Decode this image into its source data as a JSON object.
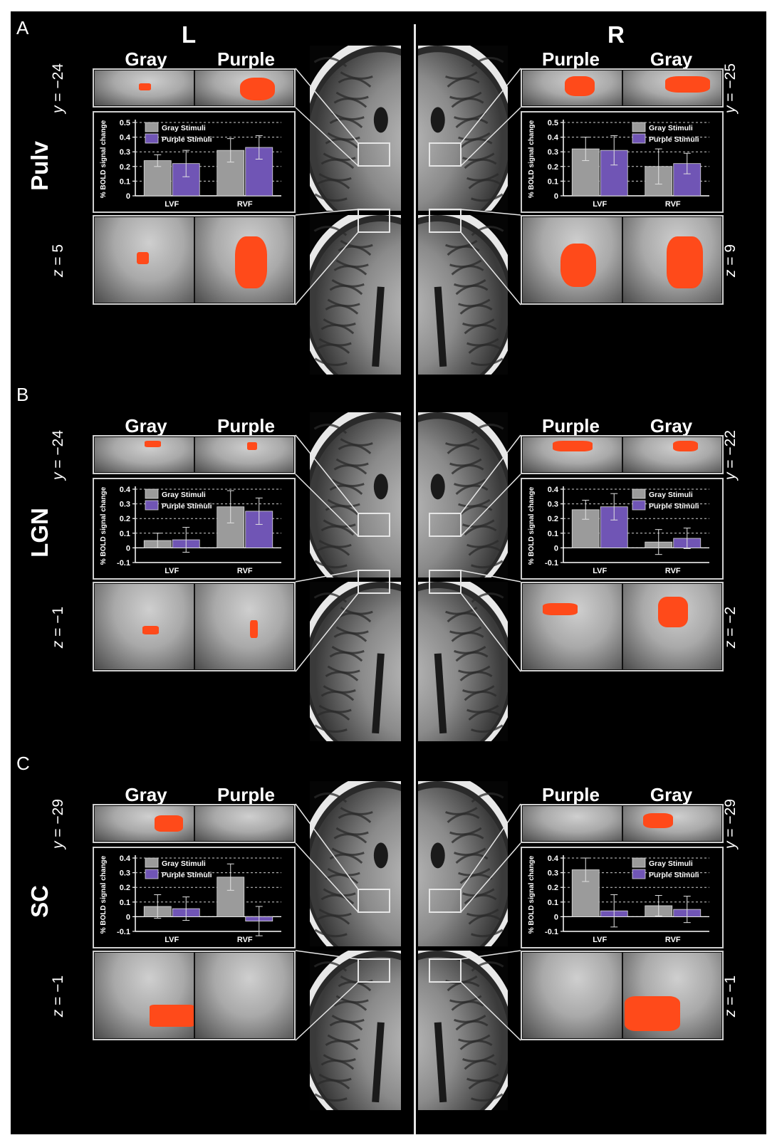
{
  "figure": {
    "hemispheres": {
      "left": "L",
      "right": "R"
    },
    "rows": [
      {
        "letter": "A",
        "region": "Pulv",
        "left": {
          "headers": [
            "Gray",
            "Purple"
          ],
          "y_coord": {
            "axis": "y",
            "value": " = −24"
          },
          "z_coord": {
            "axis": "z",
            "value": " = 5"
          }
        },
        "right": {
          "headers": [
            "Purple",
            "Gray"
          ],
          "y_coord": {
            "axis": "y",
            "value": " = −25"
          },
          "z_coord": {
            "axis": "z",
            "value": " = 9"
          }
        }
      },
      {
        "letter": "B",
        "region": "LGN",
        "left": {
          "headers": [
            "Gray",
            "Purple"
          ],
          "y_coord": {
            "axis": "y",
            "value": " = −24"
          },
          "z_coord": {
            "axis": "z",
            "value": " = −1"
          }
        },
        "right": {
          "headers": [
            "Purple",
            "Gray"
          ],
          "y_coord": {
            "axis": "y",
            "value": " = −22"
          },
          "z_coord": {
            "axis": "z",
            "value": " = −2"
          }
        }
      },
      {
        "letter": "C",
        "region": "SC",
        "left": {
          "headers": [
            "Gray",
            "Purple"
          ],
          "y_coord": {
            "axis": "y",
            "value": " = −29"
          },
          "z_coord": {
            "axis": "z",
            "value": " = −1"
          }
        },
        "right": {
          "headers": [
            "Purple",
            "Gray"
          ],
          "y_coord": {
            "axis": "y",
            "value": " = −29"
          },
          "z_coord": {
            "axis": "z",
            "value": " = −1"
          }
        }
      }
    ],
    "colors": {
      "gray_bar": "#9b9b9b",
      "purple_bar": "#7055b5",
      "activation": "#ff4a1a",
      "background": "#000000"
    }
  },
  "chart_data": [
    {
      "type": "bar",
      "panel": "A",
      "hemisphere": "L",
      "ylabel": "% BOLD signal change",
      "categories": [
        "LVF",
        "RVF"
      ],
      "ylim": [
        0,
        0.5
      ],
      "yticks": [
        0,
        0.1,
        0.2,
        0.3,
        0.4,
        0.5
      ],
      "ytick_labels": [
        "0",
        "0.1",
        "0.2",
        "0.3",
        "0.4",
        "0.5"
      ],
      "legend": "top-left",
      "grid": "dashed horizontal",
      "series": [
        {
          "name": "Gray Stimuli",
          "values": [
            0.24,
            0.31
          ],
          "errors": [
            0.04,
            0.08
          ]
        },
        {
          "name": "Purple Stimuli",
          "values": [
            0.22,
            0.33
          ],
          "errors": [
            0.09,
            0.08
          ]
        }
      ]
    },
    {
      "type": "bar",
      "panel": "A",
      "hemisphere": "R",
      "ylabel": "% BOLD signal change",
      "categories": [
        "LVF",
        "RVF"
      ],
      "ylim": [
        0,
        0.5
      ],
      "yticks": [
        0,
        0.1,
        0.2,
        0.3,
        0.4,
        0.5
      ],
      "ytick_labels": [
        "0",
        "0.1",
        "0.2",
        "0.3",
        "0.4",
        "0.5"
      ],
      "legend": "top-right",
      "grid": "dashed horizontal",
      "series": [
        {
          "name": "Gray Stimuli",
          "values": [
            0.32,
            0.2
          ],
          "errors": [
            0.08,
            0.12
          ]
        },
        {
          "name": "Purple Stimuli",
          "values": [
            0.31,
            0.22
          ],
          "errors": [
            0.1,
            0.07
          ]
        }
      ]
    },
    {
      "type": "bar",
      "panel": "B",
      "hemisphere": "L",
      "ylabel": "% BOLD signal change",
      "categories": [
        "LVF",
        "RVF"
      ],
      "ylim": [
        -0.1,
        0.4
      ],
      "yticks": [
        -0.1,
        0,
        0.1,
        0.2,
        0.3,
        0.4
      ],
      "ytick_labels": [
        "-0.1",
        "0",
        "0.1",
        "0.2",
        "0.3",
        "0.4"
      ],
      "legend": "top-left",
      "grid": "dashed horizontal",
      "series": [
        {
          "name": "Gray Stimuli",
          "values": [
            0.05,
            0.28
          ],
          "errors": [
            0.05,
            0.11
          ]
        },
        {
          "name": "Purple Stimuli",
          "values": [
            0.055,
            0.25
          ],
          "errors": [
            0.085,
            0.09
          ]
        }
      ]
    },
    {
      "type": "bar",
      "panel": "B",
      "hemisphere": "R",
      "ylabel": "% BOLD signal change",
      "categories": [
        "LVF",
        "RVF"
      ],
      "ylim": [
        -0.1,
        0.4
      ],
      "yticks": [
        -0.1,
        0,
        0.1,
        0.2,
        0.3,
        0.4
      ],
      "ytick_labels": [
        "-0.1",
        "0",
        "0.1",
        "0.2",
        "0.3",
        "0.4"
      ],
      "legend": "top-right",
      "grid": "dashed horizontal",
      "series": [
        {
          "name": "Gray Stimuli",
          "values": [
            0.26,
            0.04
          ],
          "errors": [
            0.065,
            0.085
          ]
        },
        {
          "name": "Purple Stimuli",
          "values": [
            0.28,
            0.065
          ],
          "errors": [
            0.09,
            0.07
          ]
        }
      ]
    },
    {
      "type": "bar",
      "panel": "C",
      "hemisphere": "L",
      "ylabel": "% BOLD signal change",
      "categories": [
        "LVF",
        "RVF"
      ],
      "ylim": [
        -0.1,
        0.4
      ],
      "yticks": [
        -0.1,
        0,
        0.1,
        0.2,
        0.3,
        0.4
      ],
      "ytick_labels": [
        "-0.1",
        "0",
        "0.1",
        "0.2",
        "0.3",
        "0.4"
      ],
      "legend": "top-left",
      "grid": "dashed horizontal",
      "series": [
        {
          "name": "Gray Stimuli",
          "values": [
            0.07,
            0.27
          ],
          "errors": [
            0.08,
            0.09
          ]
        },
        {
          "name": "Purple Stimuli",
          "values": [
            0.055,
            -0.03
          ],
          "errors": [
            0.08,
            0.1
          ]
        }
      ]
    },
    {
      "type": "bar",
      "panel": "C",
      "hemisphere": "R",
      "ylabel": "% BOLD signal change",
      "categories": [
        "LVF",
        "RVF"
      ],
      "ylim": [
        -0.1,
        0.4
      ],
      "yticks": [
        -0.1,
        0,
        0.1,
        0.2,
        0.3,
        0.4
      ],
      "ytick_labels": [
        "-0.1",
        "0",
        "0.1",
        "0.2",
        "0.3",
        "0.4"
      ],
      "legend": "top-right",
      "grid": "dashed horizontal",
      "series": [
        {
          "name": "Gray Stimuli",
          "values": [
            0.32,
            0.075
          ],
          "errors": [
            0.08,
            0.07
          ]
        },
        {
          "name": "Purple Stimuli",
          "values": [
            0.04,
            0.05
          ],
          "errors": [
            0.11,
            0.09
          ]
        }
      ]
    }
  ]
}
